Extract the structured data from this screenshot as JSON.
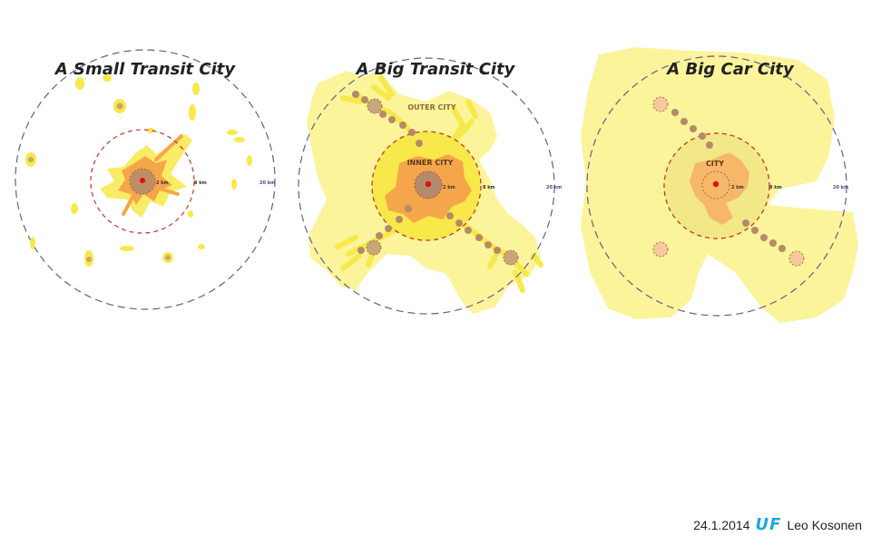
{
  "panels": [
    {
      "title": "A Small Transit City",
      "zone_label": "",
      "dist_inner": "2 km",
      "dist_mid": "8 km",
      "dist_outer": "20 km"
    },
    {
      "title": "A Big Transit City",
      "outer_zone_label": "OUTER CITY",
      "zone_label": "INNER CITY",
      "dist_inner": "2 km",
      "dist_mid": "8 km",
      "dist_outer": "20 km"
    },
    {
      "title": "A Big Car City",
      "zone_label": "CITY",
      "dist_inner": "2 km",
      "dist_mid": "8 km",
      "dist_outer": "20 km"
    }
  ],
  "footer": {
    "date": "24.1.2014",
    "logo": "UF",
    "author": "Leo Kosonen"
  },
  "colors": {
    "urban_light": "#fbf49a",
    "urban_yellow": "#f7e94a",
    "urban_orange": "#f6a64a",
    "node_brown": "#b58a6a",
    "ring_red": "#c0392b",
    "ring_outer": "#6a5a8a",
    "center_dot": "#e01010",
    "logo_blue": "#1fa7e0"
  }
}
